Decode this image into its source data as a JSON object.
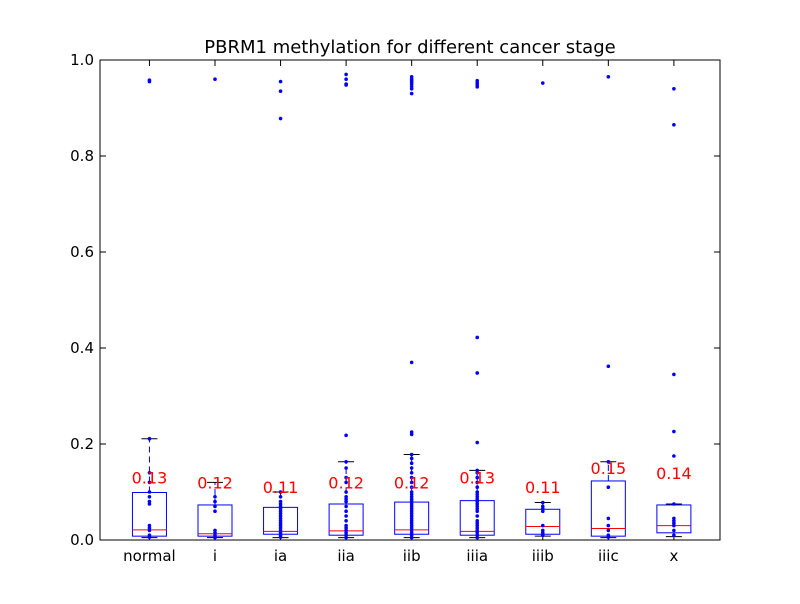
{
  "chart_data": {
    "type": "boxplot",
    "title": "PBRM1 methylation for different cancer stage",
    "xlabel": "",
    "ylabel": "",
    "ylim": [
      0.0,
      1.0
    ],
    "yticks": [
      "0.0",
      "0.2",
      "0.4",
      "0.6",
      "0.8",
      "1.0"
    ],
    "categories": [
      "normal",
      "i",
      "ia",
      "iia",
      "iib",
      "iiia",
      "iiib",
      "iiic",
      "x"
    ],
    "colors": {
      "box": "#0000ff",
      "median": "#ff0000",
      "points": "#0000ff",
      "whisker_cap": "#000000",
      "annotation": "#ff0000"
    },
    "boxes": [
      {
        "label": "normal",
        "q1": 0.008,
        "median": 0.021,
        "q3": 0.099,
        "whisker_low": 0.005,
        "whisker_high": 0.211,
        "annotation": "0.13",
        "points": [
          0.955,
          0.958,
          0.211,
          0.14,
          0.12,
          0.1,
          0.09,
          0.08,
          0.075,
          0.03,
          0.025,
          0.02,
          0.01,
          0.006
        ]
      },
      {
        "label": "i",
        "q1": 0.008,
        "median": 0.013,
        "q3": 0.073,
        "whisker_low": 0.005,
        "whisker_high": 0.12,
        "annotation": "0.12",
        "points": [
          0.96,
          0.09,
          0.08,
          0.07,
          0.06,
          0.02,
          0.015,
          0.01,
          0.005
        ]
      },
      {
        "label": "ia",
        "q1": 0.012,
        "median": 0.018,
        "q3": 0.068,
        "whisker_low": 0.005,
        "whisker_high": 0.1,
        "annotation": "0.11",
        "points": [
          0.955,
          0.935,
          0.878,
          0.1,
          0.09,
          0.08,
          0.075,
          0.07,
          0.065,
          0.06,
          0.055,
          0.05,
          0.045,
          0.04,
          0.035,
          0.03,
          0.025,
          0.02,
          0.015,
          0.01,
          0.006
        ]
      },
      {
        "label": "iia",
        "q1": 0.01,
        "median": 0.019,
        "q3": 0.075,
        "whisker_low": 0.005,
        "whisker_high": 0.163,
        "annotation": "0.12",
        "points": [
          0.97,
          0.96,
          0.95,
          0.948,
          0.218,
          0.163,
          0.15,
          0.13,
          0.12,
          0.1,
          0.09,
          0.085,
          0.08,
          0.07,
          0.06,
          0.05,
          0.04,
          0.03,
          0.025,
          0.02,
          0.015,
          0.01,
          0.005
        ]
      },
      {
        "label": "iib",
        "q1": 0.012,
        "median": 0.021,
        "q3": 0.079,
        "whisker_low": 0.005,
        "whisker_high": 0.178,
        "annotation": "0.12",
        "points": [
          0.965,
          0.96,
          0.957,
          0.953,
          0.95,
          0.945,
          0.94,
          0.93,
          0.37,
          0.225,
          0.22,
          0.178,
          0.17,
          0.16,
          0.15,
          0.14,
          0.13,
          0.12,
          0.11,
          0.1,
          0.095,
          0.09,
          0.085,
          0.08,
          0.075,
          0.07,
          0.065,
          0.06,
          0.055,
          0.05,
          0.045,
          0.04,
          0.035,
          0.03,
          0.025,
          0.02,
          0.015,
          0.01,
          0.005
        ]
      },
      {
        "label": "iiia",
        "q1": 0.01,
        "median": 0.018,
        "q3": 0.082,
        "whisker_low": 0.005,
        "whisker_high": 0.145,
        "annotation": "0.13",
        "points": [
          0.957,
          0.952,
          0.948,
          0.944,
          0.422,
          0.348,
          0.203,
          0.145,
          0.14,
          0.13,
          0.12,
          0.11,
          0.1,
          0.095,
          0.09,
          0.085,
          0.08,
          0.075,
          0.07,
          0.065,
          0.06,
          0.05,
          0.04,
          0.035,
          0.03,
          0.025,
          0.02,
          0.015,
          0.01,
          0.005
        ]
      },
      {
        "label": "iiib",
        "q1": 0.012,
        "median": 0.028,
        "q3": 0.064,
        "whisker_low": 0.008,
        "whisker_high": 0.078,
        "annotation": "0.11",
        "points": [
          0.952,
          0.078,
          0.07,
          0.065,
          0.06,
          0.03,
          0.02,
          0.015,
          0.01
        ]
      },
      {
        "label": "iiic",
        "q1": 0.008,
        "median": 0.024,
        "q3": 0.123,
        "whisker_low": 0.005,
        "whisker_high": 0.163,
        "annotation": "0.15",
        "points": [
          0.965,
          0.362,
          0.163,
          0.11,
          0.045,
          0.03,
          0.02,
          0.01,
          0.006
        ]
      },
      {
        "label": "x",
        "q1": 0.015,
        "median": 0.03,
        "q3": 0.073,
        "whisker_low": 0.007,
        "whisker_high": 0.075,
        "annotation": "0.14",
        "points": [
          0.94,
          0.865,
          0.345,
          0.226,
          0.175,
          0.075,
          0.045,
          0.04,
          0.035,
          0.03,
          0.02,
          0.01
        ]
      }
    ]
  }
}
